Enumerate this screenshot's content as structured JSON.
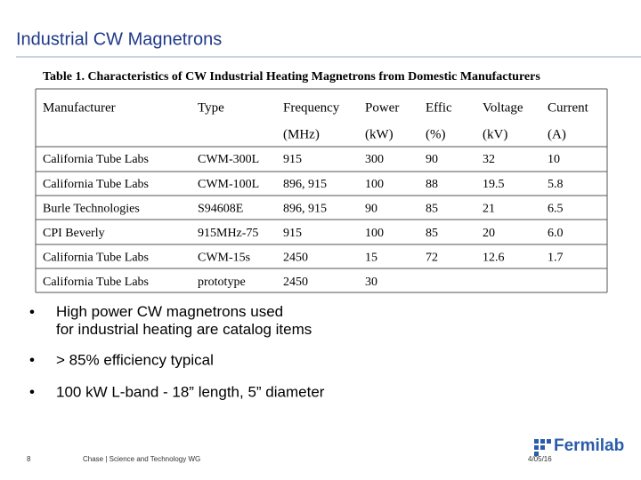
{
  "header": {
    "title": "Industrial CW Magnetrons"
  },
  "table": {
    "caption": "Table 1. Characteristics of CW Industrial Heating Magnetrons from Domestic Manufacturers",
    "columns": [
      [
        "Manufacturer",
        null
      ],
      [
        "Type",
        null
      ],
      [
        "Frequency",
        "(MHz)"
      ],
      [
        "Power",
        "(kW)"
      ],
      [
        "Effic",
        "(%)"
      ],
      [
        "Voltage",
        "(kV)"
      ],
      [
        "Current",
        "(A)"
      ]
    ],
    "rows": [
      [
        "California Tube Labs",
        "CWM-300L",
        "915",
        "300",
        "90",
        "32",
        "10"
      ],
      [
        "California Tube Labs",
        "CWM-100L",
        "896, 915",
        "100",
        "88",
        "19.5",
        "5.8"
      ],
      [
        "Burle Technologies",
        "S94608E",
        "896, 915",
        "90",
        "85",
        "21",
        "6.5"
      ],
      [
        "CPI Beverly",
        "915MHz-75",
        "915",
        "100",
        "85",
        "20",
        "6.0"
      ],
      [
        "California Tube Labs",
        "CWM-15s",
        "2450",
        "15",
        "72",
        "12.6",
        "1.7"
      ],
      [
        "California Tube Labs",
        "prototype",
        "2450",
        "30",
        null,
        null,
        null
      ]
    ]
  },
  "bullets": [
    "High power CW magnetrons used for industrial heating are catalog items",
    "> 85% efficiency typical",
    "100 kW L-band - 18” length, 5” diameter"
  ],
  "footer": {
    "page": "8",
    "text": "Chase | Science and Technology WG",
    "date": "4/05/16",
    "logo": "Fermilab"
  }
}
